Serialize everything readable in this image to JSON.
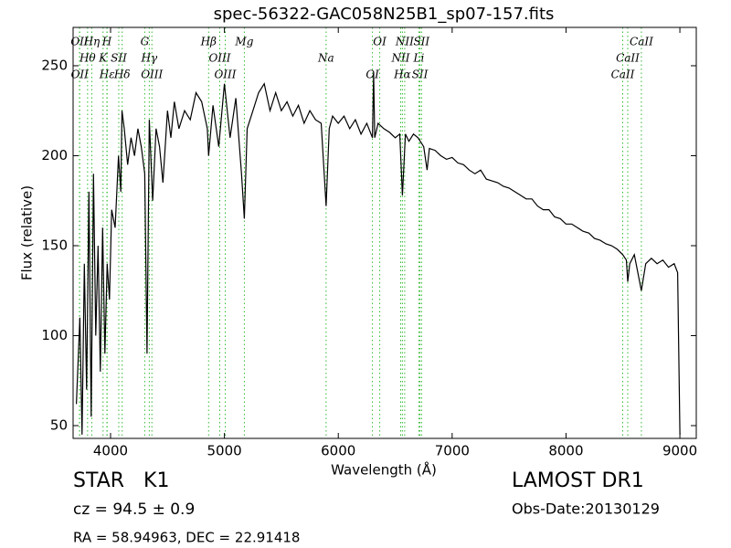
{
  "chart_data": {
    "type": "line",
    "title": "spec-56322-GAC058N25B1_sp07-157.fits",
    "x_label": "Wavelength (Å)",
    "y_label": "Flux (relative)",
    "xlim": [
      3671,
      9144
    ],
    "ylim": [
      42.9,
      271.3
    ],
    "xticks": [
      4000,
      5000,
      6000,
      7000,
      8000,
      9000
    ],
    "yticks": [
      50,
      100,
      150,
      200,
      250
    ],
    "color": "#000000",
    "line_color": "#33bb33",
    "x": [
      3700,
      3730,
      3750,
      3770,
      3790,
      3810,
      3830,
      3850,
      3870,
      3890,
      3910,
      3930,
      3950,
      3970,
      3990,
      4010,
      4040,
      4070,
      4090,
      4100,
      4120,
      4150,
      4180,
      4210,
      4240,
      4270,
      4300,
      4320,
      4340,
      4370,
      4400,
      4430,
      4460,
      4500,
      4530,
      4560,
      4600,
      4650,
      4700,
      4750,
      4800,
      4850,
      4861,
      4900,
      4950,
      5000,
      5050,
      5100,
      5150,
      5175,
      5200,
      5250,
      5300,
      5350,
      5400,
      5450,
      5500,
      5550,
      5600,
      5650,
      5700,
      5750,
      5800,
      5850,
      5893,
      5920,
      5950,
      6000,
      6050,
      6100,
      6150,
      6200,
      6250,
      6300,
      6310,
      6320,
      6350,
      6400,
      6450,
      6500,
      6540,
      6563,
      6590,
      6620,
      6660,
      6700,
      6750,
      6780,
      6800,
      6850,
      6900,
      6950,
      7000,
      7050,
      7100,
      7150,
      7200,
      7250,
      7300,
      7350,
      7400,
      7450,
      7500,
      7550,
      7600,
      7650,
      7700,
      7750,
      7800,
      7850,
      7900,
      7950,
      8000,
      8050,
      8100,
      8150,
      8200,
      8250,
      8300,
      8350,
      8400,
      8450,
      8498,
      8530,
      8542,
      8560,
      8600,
      8662,
      8700,
      8750,
      8800,
      8850,
      8900,
      8950,
      8980,
      9000
    ],
    "values": [
      62,
      110,
      45,
      140,
      70,
      180,
      55,
      190,
      100,
      150,
      80,
      160,
      90,
      140,
      120,
      170,
      160,
      200,
      180,
      225,
      215,
      195,
      210,
      200,
      215,
      205,
      190,
      90,
      220,
      175,
      215,
      205,
      185,
      225,
      210,
      230,
      215,
      225,
      220,
      235,
      230,
      215,
      200,
      228,
      205,
      240,
      210,
      232,
      190,
      165,
      215,
      225,
      235,
      240,
      225,
      235,
      225,
      230,
      222,
      228,
      218,
      225,
      220,
      218,
      172,
      215,
      222,
      218,
      222,
      215,
      220,
      212,
      218,
      210,
      246,
      210,
      218,
      215,
      213,
      210,
      212,
      178,
      212,
      208,
      212,
      210,
      205,
      192,
      204,
      203,
      200,
      198,
      199,
      196,
      195,
      192,
      190,
      192,
      187,
      186,
      185,
      183,
      182,
      180,
      178,
      176,
      176,
      172,
      170,
      170,
      166,
      165,
      162,
      162,
      160,
      158,
      157,
      154,
      153,
      151,
      150,
      148,
      145,
      142,
      130,
      140,
      145,
      125,
      140,
      143,
      140,
      142,
      138,
      140,
      135,
      45
    ],
    "lines": [
      {
        "label": "OII",
        "x": 3727
      },
      {
        "label": "Hθ",
        "x": 3798
      },
      {
        "label": "OII",
        "x": 3729
      },
      {
        "label": "Hη",
        "x": 3835
      },
      {
        "label": "K",
        "x": 3934
      },
      {
        "label": "Hε",
        "x": 3970
      },
      {
        "label": "H",
        "x": 3968
      },
      {
        "label": "SII",
        "x": 4072
      },
      {
        "label": "Hδ",
        "x": 4102
      },
      {
        "label": "G",
        "x": 4300
      },
      {
        "label": "Hγ",
        "x": 4340
      },
      {
        "label": "OIII",
        "x": 4363
      },
      {
        "label": "Hβ",
        "x": 4861
      },
      {
        "label": "OIII",
        "x": 4959
      },
      {
        "label": "OIII",
        "x": 5007
      },
      {
        "label": "Mg",
        "x": 5175
      },
      {
        "label": "Na",
        "x": 5893
      },
      {
        "label": "OI",
        "x": 6300
      },
      {
        "label": "OI",
        "x": 6364
      },
      {
        "label": "NII",
        "x": 6548
      },
      {
        "label": "Hα",
        "x": 6563
      },
      {
        "label": "NII",
        "x": 6583
      },
      {
        "label": "Li",
        "x": 6708
      },
      {
        "label": "SII",
        "x": 6717
      },
      {
        "label": "SII",
        "x": 6731
      },
      {
        "label": "CaII",
        "x": 8542
      },
      {
        "label": "CaII",
        "x": 8498
      },
      {
        "label": "CaII",
        "x": 8662
      }
    ],
    "object_class": "STAR   K1",
    "cz": "cz = 94.5 ± 0.9",
    "coords": "RA = 58.94963, DEC = 22.91418",
    "survey": "LAMOST DR1",
    "obs_date": "Obs-Date:20130129"
  }
}
